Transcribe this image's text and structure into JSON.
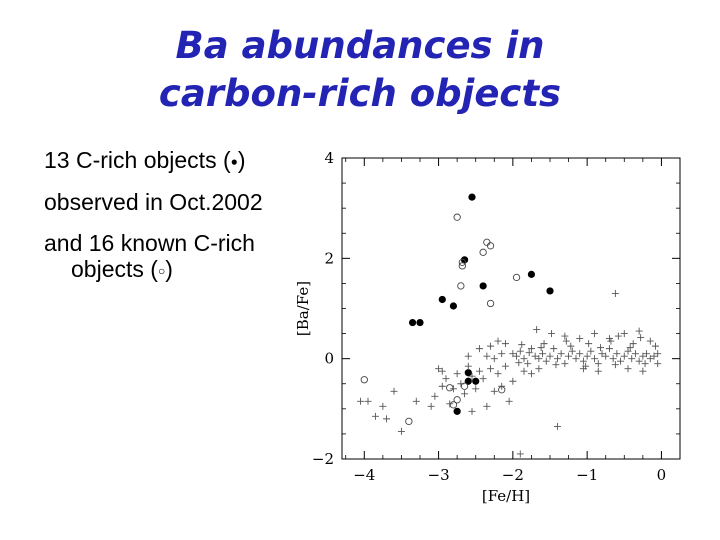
{
  "slide": {
    "title_line1": "Ba abundances in",
    "title_line2": "carbon-rich objects",
    "bullet1_pre": "13 C-rich objects (",
    "bullet1_symbol": "●",
    "bullet1_post": ")",
    "bullet2": "observed in Oct.2002",
    "bullet3": "and 16 known C-rich",
    "bullet4_pre": "objects (",
    "bullet4_symbol": "○",
    "bullet4_post": ")"
  },
  "chart_data": {
    "type": "scatter",
    "xlabel": "[Fe/H]",
    "ylabel": "[Ba/Fe]",
    "xlim": [
      -4.3,
      0.25
    ],
    "ylim": [
      -2,
      4
    ],
    "xticks": [
      -4,
      -3,
      -2,
      -1,
      0
    ],
    "yticks": [
      -2,
      0,
      2,
      4
    ],
    "grid": false,
    "series": [
      {
        "marker": "filled-circle",
        "points": [
          [
            -2.55,
            3.22
          ],
          [
            -2.65,
            1.97
          ],
          [
            -1.75,
            1.68
          ],
          [
            -2.95,
            1.18
          ],
          [
            -2.4,
            1.45
          ],
          [
            -1.5,
            1.35
          ],
          [
            -2.8,
            1.05
          ],
          [
            -3.35,
            0.72
          ],
          [
            -3.25,
            0.72
          ],
          [
            -2.6,
            -0.28
          ],
          [
            -2.6,
            -0.45
          ],
          [
            -2.5,
            -0.45
          ],
          [
            -2.75,
            -1.05
          ]
        ]
      },
      {
        "marker": "open-circle",
        "points": [
          [
            -2.75,
            2.82
          ],
          [
            -2.35,
            2.32
          ],
          [
            -2.3,
            2.25
          ],
          [
            -2.4,
            2.12
          ],
          [
            -2.68,
            1.92
          ],
          [
            -2.68,
            1.85
          ],
          [
            -2.7,
            1.45
          ],
          [
            -1.95,
            1.62
          ],
          [
            -2.3,
            1.1
          ],
          [
            -4.0,
            -0.42
          ],
          [
            -2.85,
            -0.58
          ],
          [
            -2.75,
            -0.82
          ],
          [
            -2.15,
            -0.62
          ],
          [
            -2.65,
            -0.55
          ],
          [
            -3.4,
            -1.25
          ],
          [
            -2.8,
            -0.92
          ]
        ]
      },
      {
        "marker": "plus",
        "points": [
          [
            -2.0,
            0.1
          ],
          [
            -1.95,
            0.05
          ],
          [
            -1.9,
            0.15
          ],
          [
            -1.85,
            0.0
          ],
          [
            -1.8,
            -0.1
          ],
          [
            -1.75,
            0.2
          ],
          [
            -1.7,
            0.05
          ],
          [
            -1.65,
            0.0
          ],
          [
            -1.6,
            0.1
          ],
          [
            -1.55,
            -0.05
          ],
          [
            -1.5,
            0.05
          ],
          [
            -1.45,
            0.2
          ],
          [
            -1.4,
            0.0
          ],
          [
            -1.35,
            0.1
          ],
          [
            -1.3,
            -0.1
          ],
          [
            -1.25,
            0.05
          ],
          [
            -1.2,
            0.15
          ],
          [
            -1.15,
            0.0
          ],
          [
            -1.1,
            0.1
          ],
          [
            -1.05,
            -0.05
          ],
          [
            -1.0,
            0.05
          ],
          [
            -0.95,
            0.15
          ],
          [
            -0.9,
            0.0
          ],
          [
            -0.85,
            -0.1
          ],
          [
            -0.8,
            0.1
          ],
          [
            -0.75,
            0.05
          ],
          [
            -0.7,
            0.2
          ],
          [
            -0.65,
            0.0
          ],
          [
            -0.6,
            0.1
          ],
          [
            -0.55,
            -0.05
          ],
          [
            -0.5,
            0.05
          ],
          [
            -0.45,
            0.15
          ],
          [
            -0.4,
            0.0
          ],
          [
            -0.35,
            0.1
          ],
          [
            -0.3,
            -0.05
          ],
          [
            -0.25,
            0.05
          ],
          [
            -0.2,
            0.1
          ],
          [
            -0.15,
            0.0
          ],
          [
            -0.1,
            0.05
          ],
          [
            -0.05,
            0.1
          ],
          [
            -1.92,
            -0.08
          ],
          [
            -1.78,
            0.12
          ],
          [
            -1.62,
            0.22
          ],
          [
            -1.42,
            -0.12
          ],
          [
            -1.22,
            0.25
          ],
          [
            -1.02,
            -0.15
          ],
          [
            -0.82,
            0.22
          ],
          [
            -0.62,
            -0.12
          ],
          [
            -0.42,
            0.22
          ],
          [
            -0.22,
            -0.1
          ],
          [
            -0.08,
            0.25
          ],
          [
            -1.58,
            0.3
          ],
          [
            -1.28,
            0.35
          ],
          [
            -0.98,
            0.3
          ],
          [
            -0.68,
            0.35
          ],
          [
            -0.38,
            0.3
          ],
          [
            -1.88,
            0.28
          ],
          [
            -0.58,
            0.45
          ],
          [
            -0.28,
            0.42
          ],
          [
            -1.48,
            0.5
          ],
          [
            -1.68,
            0.58
          ],
          [
            -0.62,
            1.3
          ],
          [
            -2.1,
            -0.15
          ],
          [
            -2.15,
            0.1
          ],
          [
            -2.2,
            -0.3
          ],
          [
            -2.25,
            0.0
          ],
          [
            -2.3,
            -0.2
          ],
          [
            -2.35,
            0.05
          ],
          [
            -2.4,
            -0.4
          ],
          [
            -2.45,
            -0.25
          ],
          [
            -2.5,
            -0.6
          ],
          [
            -2.55,
            -0.35
          ],
          [
            -2.6,
            -0.15
          ],
          [
            -2.65,
            -0.7
          ],
          [
            -2.7,
            -0.5
          ],
          [
            -2.75,
            -0.3
          ],
          [
            -2.8,
            -0.6
          ],
          [
            -2.85,
            -0.9
          ],
          [
            -2.9,
            -0.4
          ],
          [
            -2.95,
            -0.55
          ],
          [
            -3.0,
            -0.2
          ],
          [
            -3.05,
            -0.75
          ],
          [
            -3.1,
            -0.95
          ],
          [
            -3.3,
            -0.85
          ],
          [
            -3.5,
            -1.45
          ],
          [
            -3.6,
            -0.65
          ],
          [
            -3.7,
            -1.2
          ],
          [
            -3.85,
            -1.15
          ],
          [
            -4.05,
            -0.85
          ],
          [
            -3.95,
            -0.85
          ],
          [
            -3.75,
            -0.95
          ],
          [
            -2.55,
            -1.05
          ],
          [
            -2.35,
            -0.95
          ],
          [
            -2.05,
            -0.85
          ],
          [
            -1.9,
            -1.9
          ],
          [
            -1.4,
            -1.35
          ],
          [
            -2.15,
            -0.55
          ],
          [
            -2.25,
            -0.65
          ],
          [
            -2.0,
            -0.45
          ],
          [
            -2.1,
            0.3
          ],
          [
            -2.2,
            0.35
          ],
          [
            -2.3,
            0.25
          ],
          [
            -2.45,
            0.2
          ],
          [
            -2.6,
            0.05
          ],
          [
            -1.3,
            0.45
          ],
          [
            -1.1,
            0.4
          ],
          [
            -0.9,
            0.5
          ],
          [
            -0.7,
            0.4
          ],
          [
            -0.5,
            0.5
          ],
          [
            -0.3,
            0.55
          ],
          [
            -0.15,
            0.35
          ],
          [
            -0.05,
            -0.1
          ],
          [
            -1.05,
            -0.2
          ],
          [
            -0.85,
            -0.25
          ],
          [
            -0.45,
            -0.2
          ],
          [
            -0.25,
            -0.25
          ],
          [
            -1.65,
            -0.2
          ],
          [
            -1.85,
            -0.25
          ],
          [
            -1.75,
            -0.3
          ],
          [
            -2.95,
            -0.25
          ]
        ]
      }
    ]
  }
}
